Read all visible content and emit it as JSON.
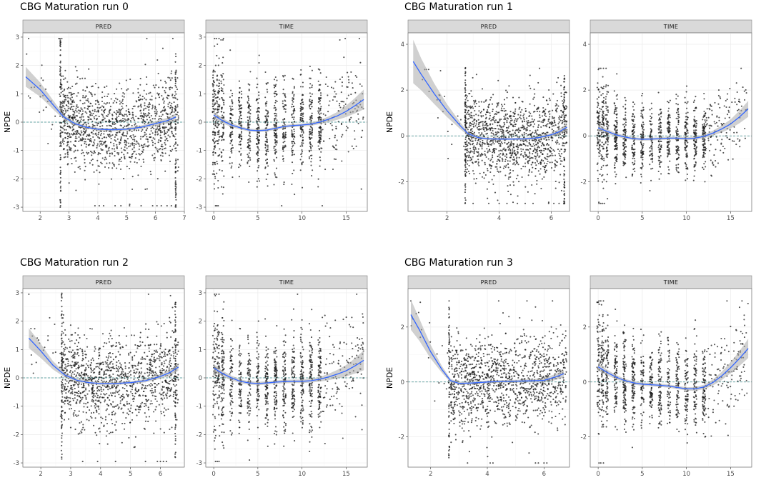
{
  "chart_data": [
    {
      "type": "scatter",
      "title": "CBG Maturation run 0",
      "ylabel": "NPDE",
      "ylim": [
        -3.15,
        3.15
      ],
      "yticks": [
        -3,
        -2,
        -1,
        0,
        1,
        2,
        3
      ],
      "panels": [
        {
          "strip": "PRED",
          "xlim": [
            1.4,
            7.0
          ],
          "xticks": [
            2,
            3,
            4,
            5,
            6,
            7
          ],
          "smooth": {
            "x": [
              1.5,
              2.0,
              2.5,
              2.8,
              3.2,
              3.6,
              4.0,
              4.5,
              5.0,
              5.5,
              6.0,
              6.4,
              6.7
            ],
            "y": [
              1.6,
              1.15,
              0.55,
              0.2,
              -0.05,
              -0.18,
              -0.25,
              -0.27,
              -0.25,
              -0.18,
              -0.05,
              0.05,
              0.18
            ],
            "se": [
              0.35,
              0.25,
              0.15,
              0.08,
              0.06,
              0.05,
              0.05,
              0.05,
              0.05,
              0.06,
              0.08,
              0.1,
              0.13
            ]
          },
          "points": {
            "count": 1300,
            "seed": 11,
            "x_dense": [
              2.7,
              6.8
            ],
            "x_sparse": [
              1.5,
              2.7
            ],
            "y_spread": 0.75,
            "hlines": [
              {
                "x": 2.7,
                "y1": -3.0,
                "y2": 3.0
              },
              {
                "x": 6.7,
                "y1": -3.0,
                "y2": 2.5
              }
            ],
            "floor": {
              "y": -2.95,
              "xs": [
                3.9,
                4.05,
                4.2,
                4.6,
                4.8,
                5.1,
                5.5,
                5.9,
                6.05,
                6.2,
                6.4,
                6.55
              ]
            },
            "ceiling": {
              "y": 2.95,
              "xs": [
                1.6,
                2.65,
                2.75,
                5.7,
                6.6
              ]
            }
          }
        },
        {
          "strip": "TIME",
          "xlim": [
            -0.9,
            17.4
          ],
          "xticks": [
            0,
            5,
            10,
            15
          ],
          "smooth": {
            "x": [
              0,
              1,
              2,
              3,
              4,
              5,
              6,
              7,
              8,
              9,
              10,
              11,
              12,
              13,
              14,
              15,
              16,
              17
            ],
            "y": [
              0.25,
              0.05,
              -0.1,
              -0.2,
              -0.28,
              -0.3,
              -0.28,
              -0.22,
              -0.15,
              -0.12,
              -0.1,
              -0.07,
              0.0,
              0.1,
              0.22,
              0.38,
              0.58,
              0.8
            ],
            "se": [
              0.12,
              0.09,
              0.07,
              0.06,
              0.05,
              0.05,
              0.05,
              0.05,
              0.05,
              0.05,
              0.05,
              0.06,
              0.07,
              0.1,
              0.14,
              0.2,
              0.27,
              0.35
            ]
          },
          "points": {
            "count": 1300,
            "seed": 23,
            "stripes": [
              0.05,
              0.5,
              1.0,
              2,
              3,
              4,
              5,
              6,
              7,
              8,
              9,
              10,
              11,
              12
            ],
            "x_sparse": [
              12.2,
              17
            ],
            "y_spread": 0.8,
            "floor": {
              "y": -2.95,
              "xs": [
                0.2,
                0.35,
                0.5,
                7.7,
                12.3
              ]
            },
            "ceiling": {
              "y": 2.95,
              "xs": [
                0.1,
                0.3,
                0.6,
                1.1,
                14.9,
                16.5
              ]
            }
          }
        }
      ]
    },
    {
      "type": "scatter",
      "title": "CBG Maturation run 1",
      "ylabel": "NPDE",
      "ylim": [
        -3.3,
        4.5
      ],
      "yticks": [
        -2,
        0,
        2,
        4
      ],
      "panels": [
        {
          "strip": "PRED",
          "xlim": [
            0.5,
            6.7
          ],
          "xticks": [
            2,
            4,
            6
          ],
          "smooth": {
            "x": [
              0.7,
              1.0,
              1.5,
              2.0,
              2.5,
              2.8,
              3.2,
              3.6,
              4.0,
              4.5,
              5.0,
              5.5,
              6.0,
              6.3,
              6.6
            ],
            "y": [
              3.25,
              2.7,
              1.85,
              1.1,
              0.45,
              0.1,
              -0.08,
              -0.13,
              -0.14,
              -0.14,
              -0.13,
              -0.08,
              0.05,
              0.18,
              0.38
            ],
            "se": [
              0.95,
              0.7,
              0.45,
              0.28,
              0.15,
              0.08,
              0.06,
              0.05,
              0.05,
              0.05,
              0.05,
              0.06,
              0.08,
              0.12,
              0.16
            ]
          },
          "points": {
            "count": 1300,
            "seed": 37,
            "x_dense": [
              2.7,
              6.6
            ],
            "x_sparse": [
              0.7,
              2.7
            ],
            "y_spread": 0.9,
            "hlines": [
              {
                "x": 2.7,
                "y1": -3.0,
                "y2": 3.0
              },
              {
                "x": 6.5,
                "y1": -3.0,
                "y2": 3.0
              }
            ],
            "floor": {
              "y": -2.95,
              "xs": [
                3.0,
                3.6,
                4.0,
                4.3,
                4.7,
                5.0,
                5.3,
                5.9,
                6.1,
                6.3
              ]
            },
            "ceiling": {
              "y": 2.95,
              "xs": [
                2.7,
                5.55
              ]
            }
          }
        },
        {
          "strip": "TIME",
          "xlim": [
            -0.9,
            17.4
          ],
          "xticks": [
            0,
            5,
            10,
            15
          ],
          "smooth": {
            "x": [
              0,
              1,
              2,
              3,
              4,
              5,
              6,
              7,
              8,
              9,
              10,
              11,
              12,
              13,
              14,
              15,
              16,
              17
            ],
            "y": [
              0.35,
              0.2,
              0.05,
              -0.05,
              -0.12,
              -0.15,
              -0.14,
              -0.12,
              -0.1,
              -0.1,
              -0.12,
              -0.1,
              -0.02,
              0.12,
              0.3,
              0.52,
              0.82,
              1.18
            ],
            "se": [
              0.14,
              0.1,
              0.08,
              0.07,
              0.06,
              0.06,
              0.06,
              0.06,
              0.06,
              0.06,
              0.06,
              0.07,
              0.08,
              0.11,
              0.15,
              0.2,
              0.27,
              0.35
            ]
          },
          "points": {
            "count": 1300,
            "seed": 41,
            "stripes": [
              0.05,
              0.5,
              1.0,
              2,
              3,
              4,
              5,
              6,
              7,
              8,
              9,
              10,
              11,
              12
            ],
            "x_sparse": [
              12.2,
              17
            ],
            "y_spread": 0.8,
            "floor": {
              "y": -2.95,
              "xs": [
                0.1,
                0.3,
                0.5,
                0.7
              ]
            },
            "ceiling": {
              "y": 2.95,
              "xs": [
                0.1,
                0.3,
                0.6,
                0.9,
                16.2
              ]
            }
          }
        }
      ]
    },
    {
      "type": "scatter",
      "title": "CBG Maturation run 2",
      "ylabel": "NPDE",
      "ylim": [
        -3.15,
        3.15
      ],
      "yticks": [
        -3,
        -2,
        -1,
        0,
        1,
        2,
        3
      ],
      "panels": [
        {
          "strip": "PRED",
          "xlim": [
            1.4,
            6.8
          ],
          "xticks": [
            2,
            3,
            4,
            5,
            6
          ],
          "smooth": {
            "x": [
              1.6,
              2.0,
              2.4,
              2.8,
              3.2,
              3.6,
              4.0,
              4.5,
              5.0,
              5.5,
              6.0,
              6.3,
              6.6
            ],
            "y": [
              1.4,
              0.95,
              0.45,
              0.1,
              -0.08,
              -0.17,
              -0.2,
              -0.2,
              -0.17,
              -0.1,
              0.05,
              0.18,
              0.38
            ],
            "se": [
              0.35,
              0.25,
              0.15,
              0.08,
              0.06,
              0.05,
              0.05,
              0.05,
              0.05,
              0.06,
              0.08,
              0.1,
              0.13
            ]
          },
          "points": {
            "count": 1300,
            "seed": 53,
            "x_dense": [
              2.7,
              6.6
            ],
            "x_sparse": [
              1.6,
              2.7
            ],
            "y_spread": 0.8,
            "hlines": [
              {
                "x": 2.7,
                "y1": -3.0,
                "y2": 3.0
              },
              {
                "x": 6.5,
                "y1": -3.0,
                "y2": 2.7
              }
            ],
            "floor": {
              "y": -2.95,
              "xs": [
                3.4,
                3.9,
                4.5,
                5.5,
                5.9,
                6.0,
                6.1,
                6.2
              ]
            },
            "ceiling": {
              "y": 2.95,
              "xs": [
                1.6,
                2.7,
                5.6
              ]
            }
          }
        },
        {
          "strip": "TIME",
          "xlim": [
            -0.9,
            17.4
          ],
          "xticks": [
            0,
            5,
            10,
            15
          ],
          "smooth": {
            "x": [
              0,
              1,
              2,
              3,
              4,
              5,
              6,
              7,
              8,
              9,
              10,
              11,
              12,
              13,
              14,
              15,
              16,
              17
            ],
            "y": [
              0.35,
              0.15,
              0.0,
              -0.12,
              -0.18,
              -0.2,
              -0.18,
              -0.15,
              -0.13,
              -0.12,
              -0.12,
              -0.1,
              -0.05,
              0.03,
              0.13,
              0.25,
              0.42,
              0.62
            ],
            "se": [
              0.14,
              0.1,
              0.08,
              0.07,
              0.06,
              0.06,
              0.06,
              0.06,
              0.06,
              0.06,
              0.06,
              0.07,
              0.08,
              0.11,
              0.15,
              0.2,
              0.27,
              0.35
            ]
          },
          "points": {
            "count": 1300,
            "seed": 67,
            "stripes": [
              0.05,
              0.5,
              1.0,
              2,
              3,
              4,
              5,
              6,
              7,
              8,
              9,
              10,
              11,
              12
            ],
            "x_sparse": [
              12.2,
              17
            ],
            "y_spread": 0.8,
            "floor": {
              "y": -2.95,
              "xs": [
                0.2,
                0.4,
                0.6
              ]
            },
            "ceiling": {
              "y": 2.95,
              "xs": [
                0.1,
                0.3,
                0.6,
                9.5,
                16.2
              ]
            }
          }
        }
      ]
    },
    {
      "type": "scatter",
      "title": "CBG Maturation run 3",
      "ylabel": "NPDE",
      "ylim": [
        -3.1,
        3.4
      ],
      "yticks": [
        -2,
        0,
        2
      ],
      "panels": [
        {
          "strip": "PRED",
          "xlim": [
            1.2,
            6.9
          ],
          "xticks": [
            2,
            4,
            6
          ],
          "smooth": {
            "x": [
              1.3,
              1.6,
              2.0,
              2.4,
              2.7,
              3.0,
              3.4,
              4.0,
              4.5,
              5.0,
              5.5,
              6.0,
              6.4,
              6.7
            ],
            "y": [
              2.45,
              1.9,
              1.1,
              0.45,
              0.05,
              -0.05,
              -0.04,
              0.0,
              0.02,
              0.03,
              0.04,
              0.06,
              0.18,
              0.3
            ],
            "se": [
              0.55,
              0.4,
              0.25,
              0.12,
              0.07,
              0.05,
              0.05,
              0.05,
              0.05,
              0.05,
              0.06,
              0.08,
              0.11,
              0.14
            ]
          },
          "points": {
            "count": 1300,
            "seed": 79,
            "x_dense": [
              2.7,
              6.8
            ],
            "x_sparse": [
              1.3,
              2.7
            ],
            "y_spread": 0.85,
            "hlines": [
              {
                "x": 2.65,
                "y1": -2.8,
                "y2": 2.8
              }
            ],
            "floor": {
              "y": -2.95,
              "xs": [
                3.3,
                4.1,
                4.2,
                5.7,
                5.8,
                6.0,
                6.1
              ]
            },
            "ceiling": {
              "y": 2.95,
              "xs": [
                1.3,
                2.65,
                4.4,
                5.4,
                6.3
              ]
            }
          }
        },
        {
          "strip": "TIME",
          "xlim": [
            -0.9,
            17.4
          ],
          "xticks": [
            0,
            5,
            10,
            15
          ],
          "smooth": {
            "x": [
              0,
              1,
              2,
              3,
              4,
              5,
              6,
              7,
              8,
              9,
              10,
              11,
              12,
              13,
              14,
              15,
              16,
              17
            ],
            "y": [
              0.55,
              0.35,
              0.18,
              0.05,
              -0.03,
              -0.08,
              -0.1,
              -0.12,
              -0.15,
              -0.2,
              -0.25,
              -0.25,
              -0.18,
              -0.02,
              0.22,
              0.52,
              0.85,
              1.22
            ],
            "se": [
              0.14,
              0.1,
              0.08,
              0.07,
              0.06,
              0.06,
              0.06,
              0.06,
              0.06,
              0.06,
              0.06,
              0.07,
              0.08,
              0.11,
              0.15,
              0.2,
              0.27,
              0.35
            ]
          },
          "points": {
            "count": 1300,
            "seed": 97,
            "stripes": [
              0.05,
              0.5,
              1.0,
              2,
              3,
              4,
              5,
              6,
              7,
              8,
              9,
              10,
              11,
              12
            ],
            "x_sparse": [
              12.2,
              17
            ],
            "y_spread": 0.8,
            "floor": {
              "y": -2.95,
              "xs": [
                0.1,
                0.3,
                0.6
              ]
            },
            "ceiling": {
              "y": 2.95,
              "xs": [
                0.1,
                0.3,
                0.6,
                14.6,
                16.3
              ]
            }
          }
        }
      ]
    }
  ]
}
